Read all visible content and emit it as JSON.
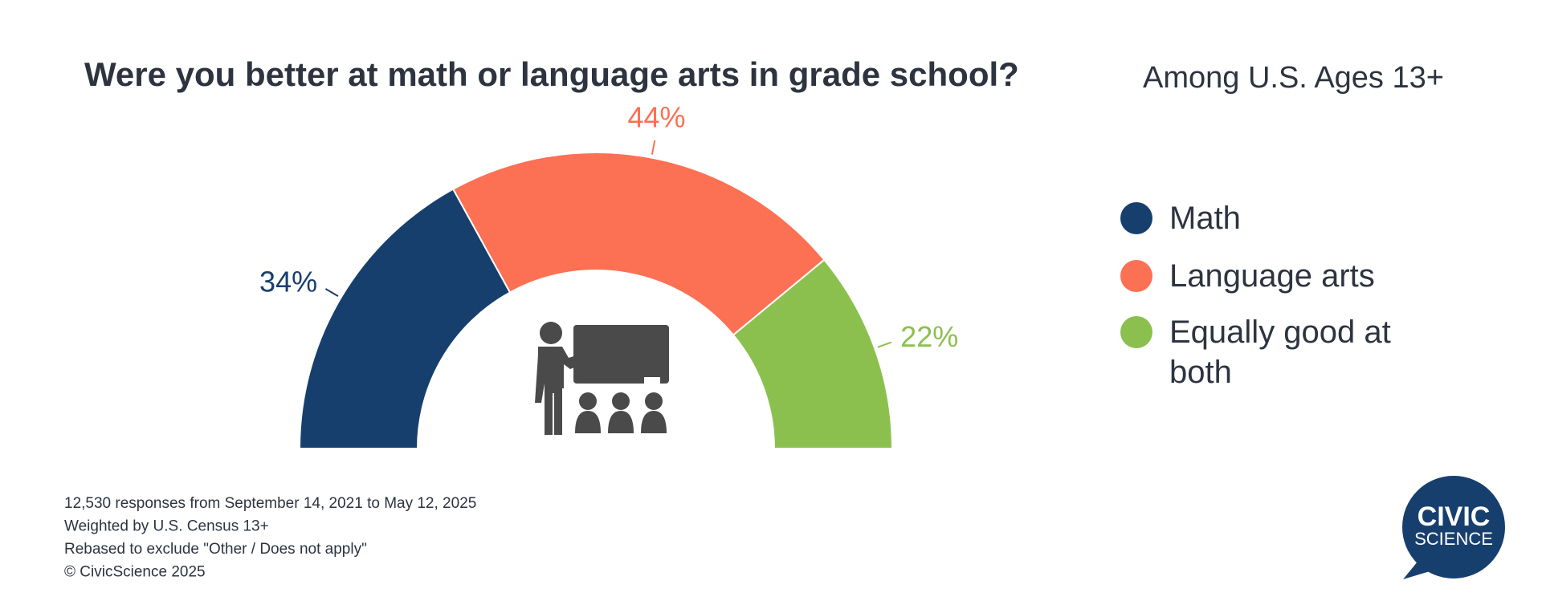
{
  "chart_data": {
    "type": "semi-donut",
    "title": "Were you better at math or language arts in grade school?",
    "subtitle": "Among U.S. Ages 13+",
    "categories": [
      "Math",
      "Language arts",
      "Equally good at both"
    ],
    "values": [
      34,
      44,
      22
    ],
    "value_labels": [
      "34%",
      "44%",
      "22%"
    ],
    "colors": [
      "#173f6e",
      "#fc7053",
      "#8bc04f"
    ],
    "legend": "right"
  },
  "notes": [
    "12,530 responses from September 14, 2021 to May 12, 2025",
    "Weighted by U.S. Census 13+",
    "Rebased to exclude \"Other / Does not apply\"",
    "© CivicScience 2025"
  ],
  "logo": {
    "line1": "CIVIC",
    "line2": "SCIENCE"
  }
}
